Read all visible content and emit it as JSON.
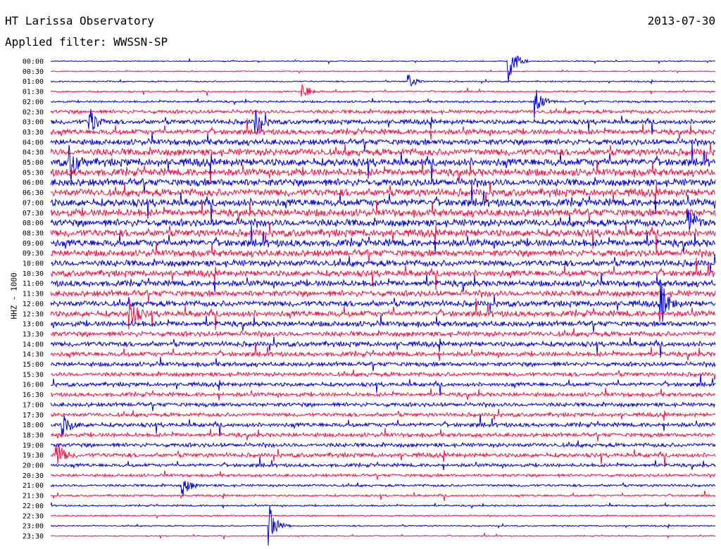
{
  "header": {
    "title": "HT Larissa Observatory",
    "date": "2013-07-30",
    "filter": "Applied filter: WWSSN-SP"
  },
  "colors": {
    "blue": "#0000dd",
    "red": "#ee1144"
  },
  "chart_data": {
    "type": "line",
    "ylabel": "HHZ - 1000",
    "row_labels": [
      "00:00",
      "00:30",
      "01:00",
      "01:30",
      "02:00",
      "02:30",
      "03:00",
      "03:30",
      "04:00",
      "04:30",
      "05:00",
      "05:30",
      "06:00",
      "06:30",
      "07:00",
      "07:30",
      "08:00",
      "08:30",
      "09:00",
      "09:30",
      "10:00",
      "10:30",
      "11:00",
      "11:30",
      "12:00",
      "12:30",
      "13:00",
      "13:30",
      "14:00",
      "14:30",
      "15:00",
      "15:30",
      "16:00",
      "16:30",
      "17:00",
      "17:30",
      "18:00",
      "18:30",
      "19:00",
      "19:30",
      "20:00",
      "20:30",
      "21:00",
      "21:30",
      "22:00",
      "22:30",
      "23:00",
      "23:30"
    ],
    "row_colors": [
      "blue",
      "red"
    ],
    "noise_level": [
      0.6,
      0.6,
      0.8,
      0.9,
      1.2,
      2.2,
      2.8,
      3.2,
      3.5,
      4.2,
      4.6,
      4.4,
      4.3,
      4.5,
      4.5,
      4.4,
      4.3,
      4.4,
      4.3,
      4.0,
      3.8,
      3.7,
      3.6,
      3.6,
      3.5,
      3.6,
      3.2,
      3.0,
      3.0,
      2.8,
      2.6,
      2.5,
      2.4,
      2.4,
      2.4,
      2.3,
      2.5,
      2.4,
      2.4,
      2.6,
      2.0,
      1.7,
      1.5,
      1.2,
      1.0,
      0.9,
      0.8,
      0.7
    ],
    "events": [
      {
        "row": 0,
        "x_frac": 0.69,
        "amplitude": 38
      },
      {
        "row": 2,
        "x_frac": 0.54,
        "amplitude": 10
      },
      {
        "row": 3,
        "x_frac": 0.38,
        "amplitude": 14
      },
      {
        "row": 4,
        "x_frac": 0.73,
        "amplitude": 22
      },
      {
        "row": 6,
        "x_frac": 0.06,
        "amplitude": 20
      },
      {
        "row": 6,
        "x_frac": 0.31,
        "amplitude": 18
      },
      {
        "row": 10,
        "x_frac": 0.03,
        "amplitude": 26
      },
      {
        "row": 16,
        "x_frac": 0.96,
        "amplitude": 24
      },
      {
        "row": 24,
        "x_frac": 0.92,
        "amplitude": 26
      },
      {
        "row": 25,
        "x_frac": 0.12,
        "amplitude": 22
      },
      {
        "row": 36,
        "x_frac": 0.02,
        "amplitude": 16
      },
      {
        "row": 39,
        "x_frac": 0.01,
        "amplitude": 18
      },
      {
        "row": 42,
        "x_frac": 0.2,
        "amplitude": 14
      },
      {
        "row": 46,
        "x_frac": 0.33,
        "amplitude": 34
      }
    ]
  }
}
